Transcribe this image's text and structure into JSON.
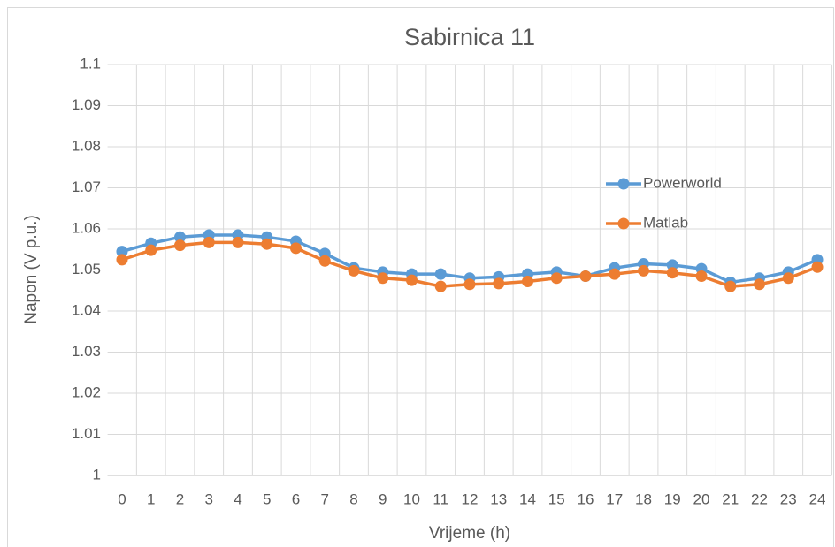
{
  "chart_data": {
    "type": "line",
    "title": "Sabirnica 11",
    "x_label": "Vrijeme (h)",
    "y_label": "Napon (V p.u.)",
    "categories": [
      "0",
      "1",
      "2",
      "3",
      "4",
      "5",
      "6",
      "7",
      "8",
      "9",
      "10",
      "11",
      "12",
      "13",
      "14",
      "15",
      "16",
      "17",
      "18",
      "19",
      "20",
      "21",
      "22",
      "23",
      "24"
    ],
    "series": [
      {
        "name": "Powerworld",
        "color": "#5b9bd5",
        "values": [
          1.0545,
          1.0565,
          1.058,
          1.0585,
          1.0585,
          1.058,
          1.057,
          1.054,
          1.0505,
          1.0495,
          1.049,
          1.049,
          1.048,
          1.0483,
          1.049,
          1.0495,
          1.0485,
          1.0505,
          1.0515,
          1.0512,
          1.0503,
          1.047,
          1.048,
          1.0495,
          1.0525
        ]
      },
      {
        "name": "Matlab",
        "color": "#ed7d31",
        "values": [
          1.0525,
          1.0548,
          1.056,
          1.0567,
          1.0567,
          1.0563,
          1.0553,
          1.0522,
          1.0498,
          1.048,
          1.0475,
          1.046,
          1.0465,
          1.0467,
          1.0472,
          1.048,
          1.0485,
          1.049,
          1.0498,
          1.0493,
          1.0485,
          1.046,
          1.0465,
          1.048,
          1.0507
        ]
      }
    ],
    "ylim": [
      1,
      1.1
    ],
    "yticks": [
      1,
      1.01,
      1.02,
      1.03,
      1.04,
      1.05,
      1.06,
      1.07,
      1.08,
      1.09,
      1.1
    ],
    "grid": true,
    "legend": "right"
  }
}
